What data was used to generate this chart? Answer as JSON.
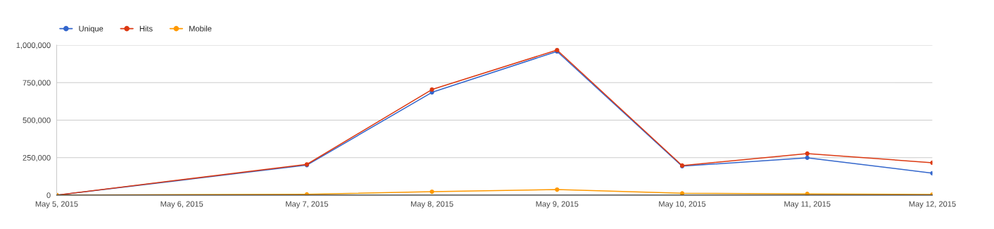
{
  "chart_data": {
    "type": "line",
    "x": [
      "2015-05-05",
      "2015-05-07",
      "2015-05-08",
      "2015-05-09",
      "2015-05-10",
      "2015-05-11",
      "2015-05-12"
    ],
    "series": [
      {
        "name": "Unique",
        "color": "#3366cc",
        "values": [
          0,
          200000,
          685000,
          958000,
          193000,
          249000,
          146000
        ]
      },
      {
        "name": "Hits",
        "color": "#dc3912",
        "values": [
          0,
          205000,
          704000,
          967000,
          197000,
          277000,
          216000
        ]
      },
      {
        "name": "Mobile",
        "color": "#ff9900",
        "values": [
          0,
          5000,
          23000,
          37000,
          12000,
          8000,
          4000
        ]
      }
    ],
    "xlim": [
      "2015-05-05",
      "2015-05-12"
    ],
    "xticks": [
      {
        "value": "2015-05-05",
        "label": "May 5, 2015"
      },
      {
        "value": "2015-05-06",
        "label": "May 6, 2015"
      },
      {
        "value": "2015-05-07",
        "label": "May 7, 2015"
      },
      {
        "value": "2015-05-08",
        "label": "May 8, 2015"
      },
      {
        "value": "2015-05-09",
        "label": "May 9, 2015"
      },
      {
        "value": "2015-05-10",
        "label": "May 10, 2015"
      },
      {
        "value": "2015-05-11",
        "label": "May 11, 2015"
      },
      {
        "value": "2015-05-12",
        "label": "May 12, 2015"
      }
    ],
    "ylim": [
      0,
      1000000
    ],
    "yticks": [
      {
        "value": 0,
        "label": "0"
      },
      {
        "value": 250000,
        "label": "250,000"
      },
      {
        "value": 500000,
        "label": "500,000"
      },
      {
        "value": 750000,
        "label": "750,000"
      },
      {
        "value": 1000000,
        "label": "1,000,000"
      }
    ],
    "grid": "y",
    "legend": "top left",
    "marker": "circle",
    "line_style": "solid"
  }
}
